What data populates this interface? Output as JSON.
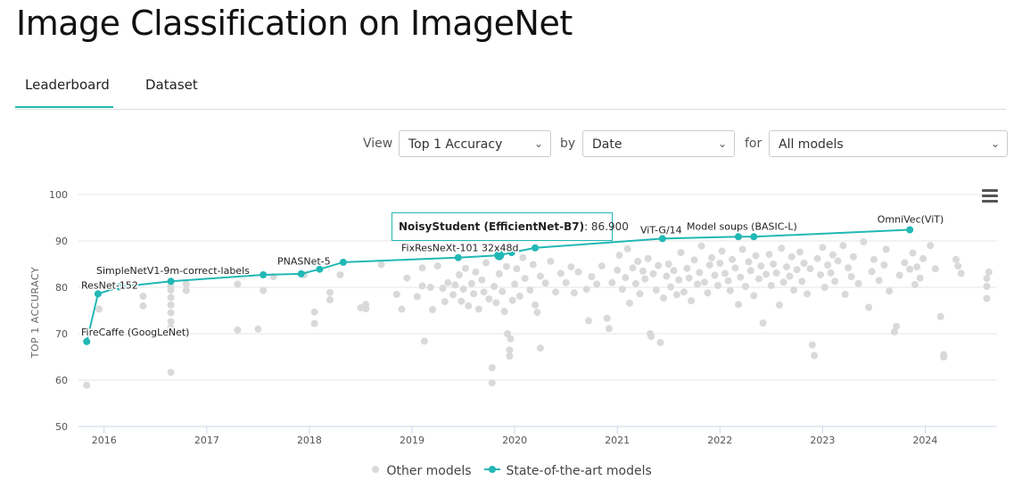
{
  "page": {
    "title": "Image Classification on ImageNet"
  },
  "tabs": [
    {
      "label": "Leaderboard"
    },
    {
      "label": "Dataset"
    }
  ],
  "controls": {
    "view_label": "View",
    "view_value": "Top 1 Accuracy",
    "by_label": "by",
    "by_value": "Date",
    "for_label": "for",
    "for_value": "All models"
  },
  "tooltip": {
    "model": "NoisyStudent (EfficientNet-B7)",
    "value": "86.900"
  },
  "legend": {
    "other": "Other models",
    "sota": "State-of-the-art models"
  },
  "colors": {
    "sota": "#21b8b5",
    "other": "#d9d9d9"
  },
  "icons": {
    "menu": "hamburger-menu-icon",
    "chevron": "chevron-down-icon"
  },
  "chart_data": {
    "type": "scatter",
    "xlim": [
      2015.75,
      2024.7
    ],
    "ylim": [
      50,
      100
    ],
    "ylabel": "TOP 1 ACCURACY",
    "x_ticks": [
      "2016",
      "2017",
      "2018",
      "2019",
      "2020",
      "2021",
      "2022",
      "2023",
      "2024"
    ],
    "y_ticks": [
      "50",
      "60",
      "70",
      "80",
      "90",
      "100"
    ],
    "grid": true,
    "legend_position": "bottom",
    "series": [
      {
        "name": "State-of-the-art models",
        "points": [
          {
            "x": 2015.83,
            "y": 68.3,
            "label": "FireCaffe (GoogLeNet)"
          },
          {
            "x": 2015.94,
            "y": 78.6,
            "label": "ResNet-152"
          },
          {
            "x": 2016.15,
            "y": 80.1,
            "label": ""
          },
          {
            "x": 2016.65,
            "y": 81.3,
            "label": "SimpleNetV1-9m-correct-labels"
          },
          {
            "x": 2017.55,
            "y": 82.7,
            "label": ""
          },
          {
            "x": 2017.92,
            "y": 82.9,
            "label": ""
          },
          {
            "x": 2018.1,
            "y": 83.9,
            "label": "PNASNet-5"
          },
          {
            "x": 2018.33,
            "y": 85.4,
            "label": ""
          },
          {
            "x": 2019.45,
            "y": 86.4,
            "label": "FixResNeXt-101 32x48d"
          },
          {
            "x": 2019.85,
            "y": 86.9,
            "label": ""
          },
          {
            "x": 2019.97,
            "y": 87.5,
            "label": ""
          },
          {
            "x": 2020.2,
            "y": 88.5,
            "label": ""
          },
          {
            "x": 2021.44,
            "y": 90.5,
            "label": "ViT-G/14"
          },
          {
            "x": 2022.18,
            "y": 90.9,
            "label": ""
          },
          {
            "x": 2022.33,
            "y": 90.9,
            "label": "Model soups (BASIC-L)"
          },
          {
            "x": 2023.85,
            "y": 92.4,
            "label": "OmniVec(ViT)"
          }
        ]
      },
      {
        "name": "Other models",
        "points": [
          [
            2015.83,
            58.9
          ],
          [
            2015.95,
            75.3
          ],
          [
            2016.05,
            80.1
          ],
          [
            2016.38,
            78.1
          ],
          [
            2016.38,
            76.0
          ],
          [
            2016.65,
            61.7
          ],
          [
            2016.65,
            71.3
          ],
          [
            2016.65,
            72.6
          ],
          [
            2016.65,
            74.5
          ],
          [
            2016.65,
            76.2
          ],
          [
            2016.65,
            77.8
          ],
          [
            2016.65,
            79.4
          ],
          [
            2016.65,
            80.3
          ],
          [
            2016.8,
            79.3
          ],
          [
            2016.8,
            80.7
          ],
          [
            2017.3,
            70.8
          ],
          [
            2017.3,
            80.7
          ],
          [
            2017.5,
            71.0
          ],
          [
            2017.55,
            79.3
          ],
          [
            2017.65,
            82.3
          ],
          [
            2017.95,
            82.7
          ],
          [
            2018.05,
            72.2
          ],
          [
            2018.05,
            74.7
          ],
          [
            2018.2,
            77.3
          ],
          [
            2018.2,
            78.9
          ],
          [
            2018.3,
            82.7
          ],
          [
            2018.5,
            75.6
          ],
          [
            2018.55,
            76.3
          ],
          [
            2018.55,
            75.4
          ],
          [
            2018.7,
            84.9
          ],
          [
            2018.85,
            78.5
          ],
          [
            2018.9,
            75.3
          ],
          [
            2018.95,
            82.0
          ],
          [
            2019.05,
            78.0
          ],
          [
            2019.1,
            80.3
          ],
          [
            2019.1,
            84.2
          ],
          [
            2019.12,
            68.4
          ],
          [
            2019.18,
            80.0
          ],
          [
            2019.2,
            75.2
          ],
          [
            2019.25,
            84.6
          ],
          [
            2019.3,
            79.8
          ],
          [
            2019.32,
            76.9
          ],
          [
            2019.35,
            81.0
          ],
          [
            2019.4,
            78.4
          ],
          [
            2019.42,
            80.5
          ],
          [
            2019.46,
            82.7
          ],
          [
            2019.48,
            77.0
          ],
          [
            2019.5,
            79.6
          ],
          [
            2019.52,
            84.1
          ],
          [
            2019.55,
            76.0
          ],
          [
            2019.58,
            80.8
          ],
          [
            2019.6,
            78.6
          ],
          [
            2019.62,
            83.3
          ],
          [
            2019.65,
            75.3
          ],
          [
            2019.68,
            81.6
          ],
          [
            2019.7,
            79.0
          ],
          [
            2019.72,
            85.3
          ],
          [
            2019.75,
            77.5
          ],
          [
            2019.78,
            62.7
          ],
          [
            2019.78,
            59.4
          ],
          [
            2019.8,
            80.2
          ],
          [
            2019.82,
            76.7
          ],
          [
            2019.85,
            82.9
          ],
          [
            2019.88,
            79.1
          ],
          [
            2019.9,
            74.8
          ],
          [
            2019.92,
            84.5
          ],
          [
            2019.93,
            70.0
          ],
          [
            2019.95,
            66.5
          ],
          [
            2019.95,
            65.2
          ],
          [
            2019.96,
            68.9
          ],
          [
            2019.98,
            77.2
          ],
          [
            2020.0,
            80.7
          ],
          [
            2020.02,
            84.0
          ],
          [
            2020.05,
            78.1
          ],
          [
            2020.08,
            86.4
          ],
          [
            2020.1,
            81.9
          ],
          [
            2020.15,
            79.4
          ],
          [
            2020.18,
            84.9
          ],
          [
            2020.2,
            76.2
          ],
          [
            2020.22,
            74.6
          ],
          [
            2020.25,
            82.4
          ],
          [
            2020.25,
            66.9
          ],
          [
            2020.3,
            80.9
          ],
          [
            2020.35,
            85.6
          ],
          [
            2020.4,
            79.0
          ],
          [
            2020.45,
            83.0
          ],
          [
            2020.5,
            81.0
          ],
          [
            2020.55,
            84.4
          ],
          [
            2020.58,
            78.8
          ],
          [
            2020.62,
            83.3
          ],
          [
            2020.7,
            79.6
          ],
          [
            2020.72,
            72.8
          ],
          [
            2020.75,
            82.3
          ],
          [
            2020.8,
            80.7
          ],
          [
            2020.85,
            84.6
          ],
          [
            2020.9,
            73.3
          ],
          [
            2020.92,
            71.1
          ],
          [
            2020.95,
            81.0
          ],
          [
            2021.0,
            83.7
          ],
          [
            2021.02,
            86.9
          ],
          [
            2021.05,
            79.6
          ],
          [
            2021.08,
            82.1
          ],
          [
            2021.1,
            88.3
          ],
          [
            2021.12,
            76.6
          ],
          [
            2021.15,
            84.2
          ],
          [
            2021.18,
            80.8
          ],
          [
            2021.2,
            85.6
          ],
          [
            2021.22,
            78.6
          ],
          [
            2021.25,
            83.5
          ],
          [
            2021.27,
            81.8
          ],
          [
            2021.3,
            86.2
          ],
          [
            2021.32,
            70.0
          ],
          [
            2021.33,
            69.4
          ],
          [
            2021.35,
            82.9
          ],
          [
            2021.38,
            79.4
          ],
          [
            2021.4,
            84.7
          ],
          [
            2021.42,
            68.1
          ],
          [
            2021.45,
            77.7
          ],
          [
            2021.48,
            82.4
          ],
          [
            2021.5,
            85.0
          ],
          [
            2021.52,
            80.1
          ],
          [
            2021.55,
            83.6
          ],
          [
            2021.58,
            78.4
          ],
          [
            2021.6,
            81.6
          ],
          [
            2021.62,
            87.5
          ],
          [
            2021.65,
            79.0
          ],
          [
            2021.68,
            84.1
          ],
          [
            2021.7,
            82.0
          ],
          [
            2021.72,
            77.1
          ],
          [
            2021.75,
            85.9
          ],
          [
            2021.78,
            80.7
          ],
          [
            2021.8,
            83.2
          ],
          [
            2021.82,
            88.9
          ],
          [
            2021.85,
            81.1
          ],
          [
            2021.88,
            78.8
          ],
          [
            2021.9,
            84.8
          ],
          [
            2021.92,
            86.4
          ],
          [
            2021.95,
            82.6
          ],
          [
            2021.98,
            80.4
          ],
          [
            2022.0,
            85.2
          ],
          [
            2022.02,
            87.8
          ],
          [
            2022.05,
            83.0
          ],
          [
            2022.08,
            81.4
          ],
          [
            2022.1,
            79.3
          ],
          [
            2022.12,
            86.0
          ],
          [
            2022.15,
            84.2
          ],
          [
            2022.18,
            76.3
          ],
          [
            2022.2,
            82.2
          ],
          [
            2022.22,
            88.2
          ],
          [
            2022.25,
            80.2
          ],
          [
            2022.28,
            85.5
          ],
          [
            2022.3,
            83.6
          ],
          [
            2022.33,
            78.2
          ],
          [
            2022.35,
            86.8
          ],
          [
            2022.38,
            81.8
          ],
          [
            2022.4,
            84.6
          ],
          [
            2022.42,
            72.3
          ],
          [
            2022.45,
            82.8
          ],
          [
            2022.48,
            87.1
          ],
          [
            2022.5,
            80.4
          ],
          [
            2022.52,
            85.0
          ],
          [
            2022.55,
            83.1
          ],
          [
            2022.58,
            76.2
          ],
          [
            2022.6,
            88.4
          ],
          [
            2022.62,
            81.1
          ],
          [
            2022.65,
            84.4
          ],
          [
            2022.68,
            82.4
          ],
          [
            2022.7,
            86.6
          ],
          [
            2022.72,
            79.4
          ],
          [
            2022.75,
            83.8
          ],
          [
            2022.78,
            87.6
          ],
          [
            2022.8,
            81.3
          ],
          [
            2022.82,
            85.2
          ],
          [
            2022.85,
            78.6
          ],
          [
            2022.88,
            84.0
          ],
          [
            2022.9,
            67.6
          ],
          [
            2022.92,
            65.3
          ],
          [
            2022.95,
            86.2
          ],
          [
            2022.98,
            82.7
          ],
          [
            2023.0,
            88.6
          ],
          [
            2023.02,
            80.0
          ],
          [
            2023.05,
            84.8
          ],
          [
            2023.08,
            83.1
          ],
          [
            2023.1,
            87.0
          ],
          [
            2023.12,
            81.3
          ],
          [
            2023.15,
            85.7
          ],
          [
            2023.2,
            89.0
          ],
          [
            2023.22,
            78.5
          ],
          [
            2023.25,
            84.2
          ],
          [
            2023.28,
            82.3
          ],
          [
            2023.3,
            86.6
          ],
          [
            2023.35,
            80.8
          ],
          [
            2023.4,
            89.8
          ],
          [
            2023.45,
            75.7
          ],
          [
            2023.48,
            83.4
          ],
          [
            2023.5,
            86.0
          ],
          [
            2023.55,
            81.5
          ],
          [
            2023.6,
            84.8
          ],
          [
            2023.62,
            88.2
          ],
          [
            2023.65,
            79.2
          ],
          [
            2023.7,
            70.4
          ],
          [
            2023.72,
            71.6
          ],
          [
            2023.75,
            82.6
          ],
          [
            2023.8,
            85.3
          ],
          [
            2023.85,
            83.9
          ],
          [
            2023.88,
            87.4
          ],
          [
            2023.9,
            80.6
          ],
          [
            2023.92,
            84.4
          ],
          [
            2023.95,
            82.0
          ],
          [
            2023.98,
            86.2
          ],
          [
            2024.05,
            89.0
          ],
          [
            2024.1,
            84.0
          ],
          [
            2024.15,
            73.7
          ],
          [
            2024.18,
            65.5
          ],
          [
            2024.18,
            65.0
          ],
          [
            2024.3,
            86.0
          ],
          [
            2024.32,
            84.6
          ],
          [
            2024.35,
            83.0
          ],
          [
            2024.6,
            81.9
          ],
          [
            2024.6,
            80.2
          ],
          [
            2024.6,
            77.6
          ],
          [
            2024.62,
            83.3
          ]
        ]
      }
    ]
  }
}
